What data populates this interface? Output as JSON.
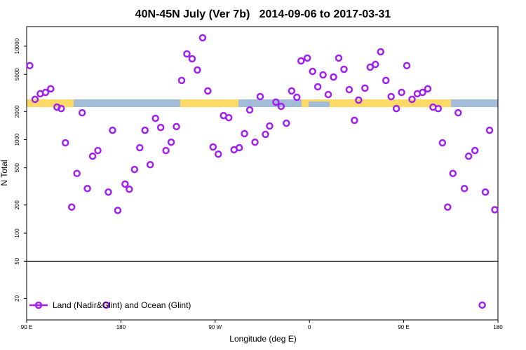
{
  "chart_data": {
    "type": "scatter",
    "title": "40N-45N July (Ver 7b)   2014-09-06 to 2017-03-31",
    "x_label": "Longitude (deg E)",
    "y_label": "N Total",
    "log_y": true,
    "xlim": [
      90,
      540
    ],
    "xticks": [
      {
        "value": 90,
        "label": "90 E"
      },
      180,
      {
        "value": 270,
        "label": "90 W"
      },
      {
        "value": 360,
        "label": "0"
      },
      {
        "value": 450,
        "label": "90 E"
      },
      {
        "value": 540,
        "label": "180"
      }
    ],
    "ylim": [
      11.8,
      16200
    ],
    "yticks": [
      20,
      50,
      100,
      200,
      500,
      1000,
      2000,
      5000,
      10000
    ],
    "hline": 50,
    "legend": "bottom-left",
    "series": [
      {
        "name": "Land (Nadir&Glint) and Ocean (Glint)",
        "color": "#a020f0",
        "x": [
          93,
          98,
          103,
          108,
          113,
          119,
          123,
          127,
          133,
          138,
          143,
          148,
          153,
          158,
          166,
          168,
          172,
          177,
          184,
          188,
          193,
          198,
          203,
          208,
          213,
          218,
          223,
          228,
          233,
          238,
          243,
          248,
          253,
          258,
          263,
          268,
          273,
          278,
          283,
          288,
          293,
          298,
          303,
          308,
          313,
          318,
          322,
          328,
          333,
          338,
          343,
          348,
          352,
          358,
          363,
          368,
          373,
          378,
          383,
          388,
          393,
          398,
          403,
          407,
          413,
          418,
          423,
          428,
          433,
          438,
          443,
          448,
          453,
          458,
          463,
          468,
          473,
          478,
          483,
          487,
          492,
          497,
          502,
          508,
          512,
          518,
          525,
          528,
          532,
          537
        ],
        "values": [
          6200,
          2700,
          3100,
          3200,
          3500,
          2230,
          2150,
          925,
          190,
          435,
          1940,
          300,
          665,
          765,
          17,
          275,
          1260,
          175,
          335,
          295,
          480,
          820,
          1260,
          540,
          1690,
          1350,
          765,
          940,
          1380,
          4300,
          8270,
          7330,
          5560,
          12300,
          3320,
          835,
          700,
          1810,
          1720,
          780,
          820,
          1160,
          2080,
          940,
          2890,
          1140,
          1400,
          2520,
          2270,
          1500,
          3320,
          2840,
          6960,
          7460,
          5370,
          3680,
          4930,
          3040,
          4680,
          7460,
          5660,
          3430,
          1610,
          2650,
          3560,
          5960,
          6380,
          8710,
          4300,
          2890,
          2150,
          3200,
          6200,
          2700,
          3100,
          3200,
          3500,
          2230,
          2150,
          925,
          190,
          435,
          1940,
          300,
          665,
          765,
          17,
          275,
          1260,
          178
        ]
      }
    ]
  }
}
